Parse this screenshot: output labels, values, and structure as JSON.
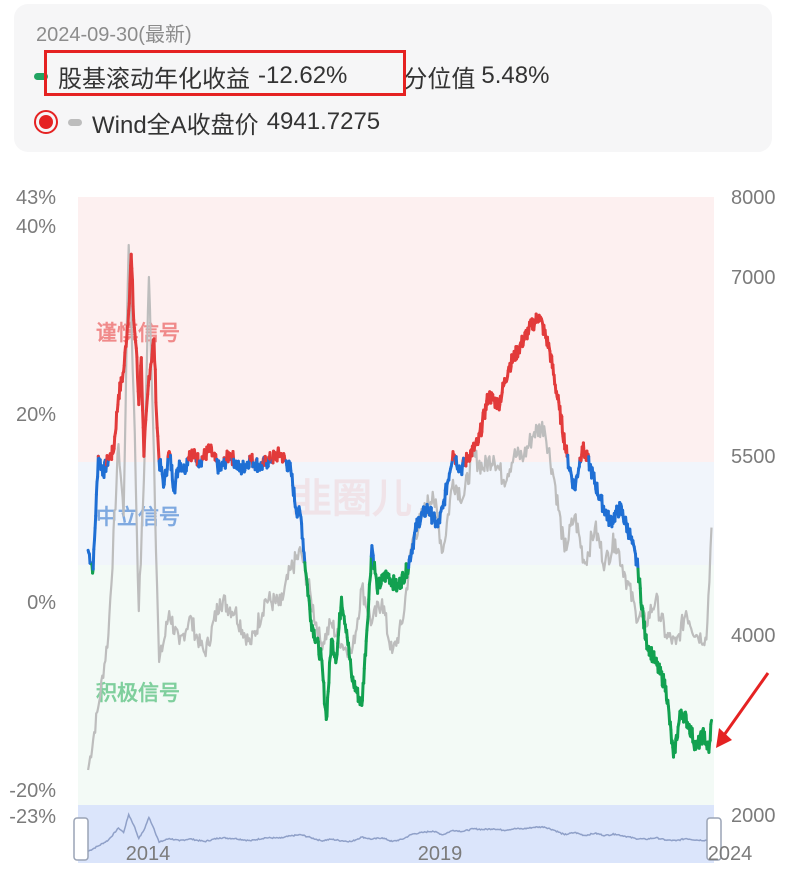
{
  "legend": {
    "date": "2024-09-30(最新)",
    "series1_name": "股基滚动年化收益",
    "series1_value": "-12.62%",
    "percentile_label": "分位值",
    "percentile_value": "5.48%",
    "series2_name": "Wind全A收盘价",
    "series2_value": "4941.7275",
    "colors": {
      "series1": "#22a463",
      "series2": "#bdbdbd",
      "highlight": "#e52222"
    }
  },
  "zones": {
    "caution": "谨慎信号",
    "neutral": "中立信号",
    "positive": "积极信号"
  },
  "watermark": "韭圈儿",
  "chart_data": {
    "type": "line",
    "left_ticks": [
      "43%",
      "40%",
      "20%",
      "0%",
      "-20%",
      "-23%"
    ],
    "right_ticks": [
      "8000",
      "7000",
      "5500",
      "4000",
      "2000"
    ],
    "x_ticks": [
      "2014",
      "2019",
      "2024"
    ],
    "left_ylim": [
      -23,
      43
    ],
    "right_ylim": [
      2000,
      8000
    ],
    "thresholds": {
      "caution_above": 15,
      "positive_below": 4
    },
    "zone_colors": {
      "caution": "#e23b3b",
      "neutral": "#1f6fd4",
      "positive": "#12a150"
    },
    "series": [
      {
        "name": "股基滚动年化收益",
        "unit": "%",
        "points": [
          [
            2013.0,
            5.5
          ],
          [
            2013.1,
            3.5
          ],
          [
            2013.2,
            15.5
          ],
          [
            2013.3,
            13.8
          ],
          [
            2013.4,
            15.2
          ],
          [
            2013.5,
            16.0
          ],
          [
            2013.6,
            22.0
          ],
          [
            2013.7,
            24.5
          ],
          [
            2013.8,
            31.0
          ],
          [
            2013.85,
            37.0
          ],
          [
            2013.9,
            30.0
          ],
          [
            2013.95,
            27.0
          ],
          [
            2014.0,
            21.0
          ],
          [
            2014.05,
            26.0
          ],
          [
            2014.1,
            15.5
          ],
          [
            2014.2,
            24.0
          ],
          [
            2014.3,
            28.0
          ],
          [
            2014.35,
            20.0
          ],
          [
            2014.4,
            15.0
          ],
          [
            2014.5,
            12.5
          ],
          [
            2014.6,
            16.0
          ],
          [
            2014.7,
            12.0
          ],
          [
            2014.8,
            15.0
          ],
          [
            2014.9,
            14.0
          ],
          [
            2015.0,
            16.0
          ],
          [
            2015.2,
            15.0
          ],
          [
            2015.4,
            16.2
          ],
          [
            2015.6,
            14.0
          ],
          [
            2015.8,
            15.8
          ],
          [
            2016.0,
            14.0
          ],
          [
            2016.2,
            15.2
          ],
          [
            2016.4,
            14.4
          ],
          [
            2016.6,
            15.2
          ],
          [
            2016.8,
            15.8
          ],
          [
            2017.0,
            14.0
          ],
          [
            2017.1,
            10.0
          ],
          [
            2017.2,
            9.0
          ],
          [
            2017.3,
            3.0
          ],
          [
            2017.4,
            -2.0
          ],
          [
            2017.6,
            -6.0
          ],
          [
            2017.7,
            -12.5
          ],
          [
            2017.8,
            -4.0
          ],
          [
            2017.9,
            -6.0
          ],
          [
            2018.0,
            0.5
          ],
          [
            2018.1,
            -3.0
          ],
          [
            2018.2,
            -8.0
          ],
          [
            2018.4,
            -11.0
          ],
          [
            2018.5,
            -3.0
          ],
          [
            2018.6,
            6.0
          ],
          [
            2018.7,
            1.5
          ],
          [
            2018.9,
            3.0
          ],
          [
            2019.1,
            1.5
          ],
          [
            2019.3,
            3.5
          ],
          [
            2019.5,
            8.5
          ],
          [
            2019.7,
            10.0
          ],
          [
            2019.9,
            8.0
          ],
          [
            2020.0,
            10.0
          ],
          [
            2020.2,
            16.0
          ],
          [
            2020.35,
            14.0
          ],
          [
            2020.5,
            15.5
          ],
          [
            2020.7,
            17.0
          ],
          [
            2020.9,
            22.0
          ],
          [
            2021.1,
            21.0
          ],
          [
            2021.3,
            25.0
          ],
          [
            2021.5,
            27.0
          ],
          [
            2021.7,
            29.0
          ],
          [
            2021.9,
            30.5
          ],
          [
            2022.1,
            27.0
          ],
          [
            2022.3,
            20.5
          ],
          [
            2022.45,
            15.5
          ],
          [
            2022.6,
            12.0
          ],
          [
            2022.75,
            16.5
          ],
          [
            2022.9,
            14.5
          ],
          [
            2023.1,
            11.0
          ],
          [
            2023.3,
            8.5
          ],
          [
            2023.5,
            10.0
          ],
          [
            2023.7,
            7.0
          ],
          [
            2023.85,
            3.5
          ],
          [
            2024.0,
            -4.0
          ],
          [
            2024.2,
            -6.5
          ],
          [
            2024.4,
            -9.0
          ],
          [
            2024.55,
            -16.5
          ],
          [
            2024.7,
            -11.5
          ],
          [
            2024.85,
            -13.0
          ],
          [
            2025.0,
            -15.5
          ],
          [
            2025.15,
            -14.0
          ],
          [
            2025.25,
            -16.0
          ],
          [
            2025.3,
            -12.6
          ]
        ]
      },
      {
        "name": "Wind全A收盘价",
        "points": [
          [
            2013.0,
            2500
          ],
          [
            2013.2,
            3200
          ],
          [
            2013.4,
            4000
          ],
          [
            2013.6,
            5600
          ],
          [
            2013.7,
            5000
          ],
          [
            2013.8,
            7400
          ],
          [
            2013.9,
            6000
          ],
          [
            2014.0,
            4200
          ],
          [
            2014.1,
            5300
          ],
          [
            2014.2,
            7000
          ],
          [
            2014.3,
            5500
          ],
          [
            2014.4,
            3700
          ],
          [
            2014.6,
            4200
          ],
          [
            2014.8,
            3900
          ],
          [
            2015.0,
            4150
          ],
          [
            2015.3,
            3800
          ],
          [
            2015.6,
            4300
          ],
          [
            2015.9,
            4200
          ],
          [
            2016.2,
            3900
          ],
          [
            2016.5,
            4300
          ],
          [
            2016.8,
            4250
          ],
          [
            2017.0,
            4550
          ],
          [
            2017.2,
            4700
          ],
          [
            2017.4,
            4300
          ],
          [
            2017.6,
            3900
          ],
          [
            2017.8,
            4100
          ],
          [
            2018.0,
            3900
          ],
          [
            2018.2,
            3800
          ],
          [
            2018.4,
            4400
          ],
          [
            2018.6,
            4100
          ],
          [
            2018.8,
            4300
          ],
          [
            2019.0,
            3800
          ],
          [
            2019.2,
            4100
          ],
          [
            2019.4,
            4800
          ],
          [
            2019.6,
            5000
          ],
          [
            2019.8,
            5200
          ],
          [
            2020.0,
            4700
          ],
          [
            2020.2,
            5300
          ],
          [
            2020.4,
            5150
          ],
          [
            2020.6,
            5500
          ],
          [
            2020.8,
            5400
          ],
          [
            2021.0,
            5500
          ],
          [
            2021.2,
            5300
          ],
          [
            2021.4,
            5500
          ],
          [
            2021.6,
            5500
          ],
          [
            2021.8,
            5700
          ],
          [
            2022.0,
            5750
          ],
          [
            2022.2,
            5300
          ],
          [
            2022.4,
            4700
          ],
          [
            2022.6,
            5000
          ],
          [
            2022.8,
            4600
          ],
          [
            2023.0,
            4900
          ],
          [
            2023.2,
            4600
          ],
          [
            2023.4,
            4800
          ],
          [
            2023.6,
            4500
          ],
          [
            2023.8,
            4200
          ],
          [
            2024.0,
            4100
          ],
          [
            2024.2,
            4300
          ],
          [
            2024.4,
            4000
          ],
          [
            2024.6,
            3900
          ],
          [
            2024.8,
            4200
          ],
          [
            2025.0,
            4000
          ],
          [
            2025.2,
            3950
          ],
          [
            2025.3,
            4900
          ]
        ]
      }
    ]
  }
}
